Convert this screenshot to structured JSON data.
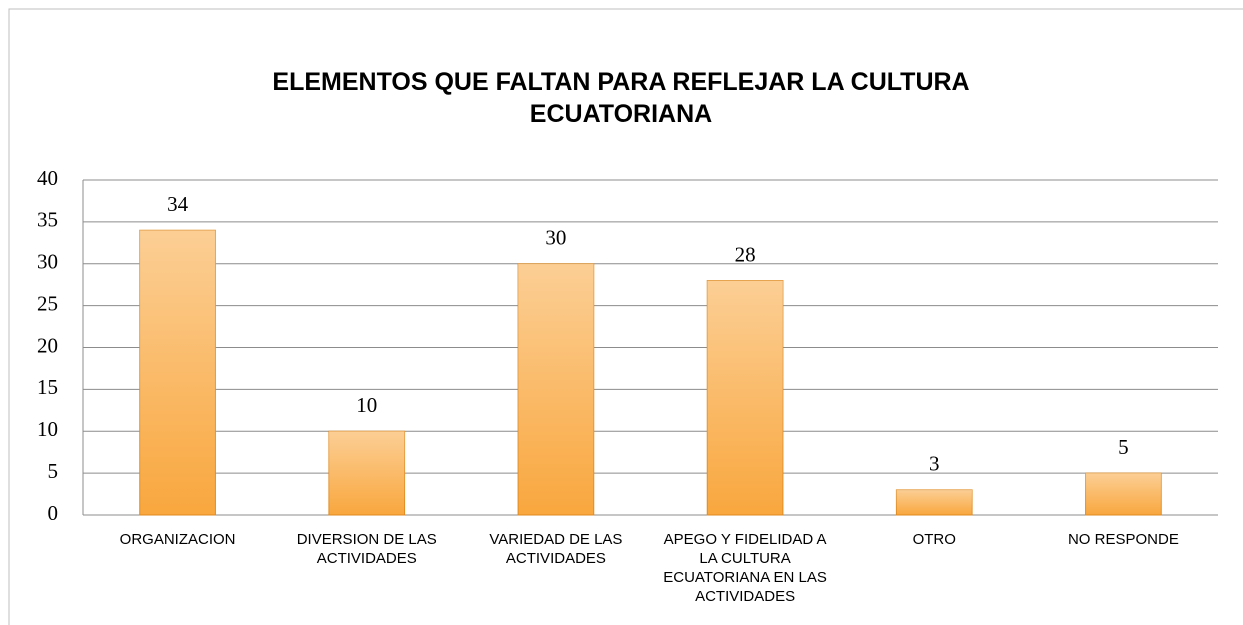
{
  "chart_data": {
    "type": "bar",
    "title": "ELEMENTOS QUE FALTAN PARA REFLEJAR LA CULTURA ECUATORIANA",
    "categories": [
      "ORGANIZACION",
      "DIVERSION DE LAS ACTIVIDADES",
      "VARIEDAD DE LAS ACTIVIDADES",
      "APEGO Y FIDELIDAD A LA CULTURA ECUATORIANA EN LAS ACTIVIDADES",
      "OTRO",
      "NO RESPONDE"
    ],
    "values": [
      34,
      10,
      30,
      28,
      3,
      5
    ],
    "color": "#f9a73e",
    "ylim": [
      0,
      40
    ],
    "yticks": [
      0,
      5,
      10,
      15,
      20,
      25,
      30,
      35,
      40
    ],
    "grid": true
  }
}
